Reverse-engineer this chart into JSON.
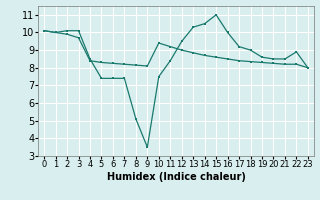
{
  "xlabel": "Humidex (Indice chaleur)",
  "background_color": "#d9eeee",
  "grid_color": "#ffffff",
  "line_color": "#1a7a6e",
  "x_vals": [
    0,
    1,
    2,
    3,
    4,
    5,
    6,
    7,
    8,
    9,
    10,
    11,
    12,
    13,
    14,
    15,
    16,
    17,
    18,
    19,
    20,
    21,
    22,
    23
  ],
  "y_jagged": [
    10.1,
    10.0,
    10.1,
    10.1,
    8.5,
    7.4,
    7.4,
    7.4,
    5.1,
    3.5,
    7.5,
    8.4,
    9.5,
    10.3,
    10.5,
    11.0,
    10.0,
    9.2,
    9.0,
    8.6,
    8.5,
    8.5,
    8.9,
    8.0
  ],
  "y_smooth": [
    10.1,
    10.0,
    9.9,
    9.7,
    8.4,
    8.3,
    8.25,
    8.2,
    8.15,
    8.1,
    9.4,
    9.2,
    9.0,
    8.85,
    8.7,
    8.6,
    8.5,
    8.4,
    8.35,
    8.3,
    8.25,
    8.2,
    8.2,
    8.0
  ],
  "xlim": [
    -0.5,
    23.5
  ],
  "ylim": [
    3,
    11.5
  ],
  "yticks": [
    3,
    4,
    5,
    6,
    7,
    8,
    9,
    10,
    11
  ],
  "xticks": [
    0,
    1,
    2,
    3,
    4,
    5,
    6,
    7,
    8,
    9,
    10,
    11,
    12,
    13,
    14,
    15,
    16,
    17,
    18,
    19,
    20,
    21,
    22,
    23
  ]
}
